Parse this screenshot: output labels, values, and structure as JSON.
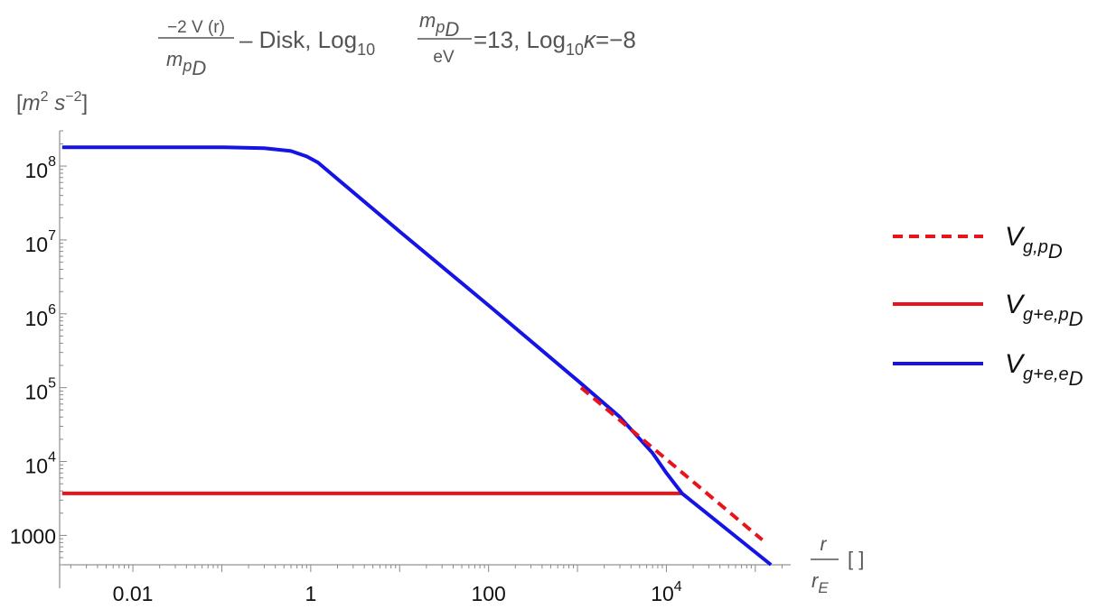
{
  "chart_data": {
    "type": "line",
    "title": {
      "frac_num": "−2 V (r)",
      "frac_den_main": "m",
      "frac_den_sub": "p",
      "frac_den_subsub": "D",
      "part1": " – Disk, Log",
      "log_sub": "10",
      "mid_frac_num_main": "m",
      "mid_frac_num_sub": "p",
      "mid_frac_num_subsub": "D",
      "mid_frac_den": "eV",
      "part2": "=13, Log",
      "log_sub2": "10",
      "kappa": "κ",
      "part3": "=−8"
    },
    "ylabel": {
      "open": "[",
      "m": "m",
      "m_exp": "2",
      "s": " s",
      "s_exp": "−2",
      "close": "]"
    },
    "xlabel": {
      "num": "r",
      "den_main": "r",
      "den_sub": "E",
      "unit": "[ ]"
    },
    "x_scale": "log",
    "y_scale": "log",
    "xlim": [
      0.0015,
      250000
    ],
    "ylim": [
      400,
      300000000
    ],
    "x_ticks": [
      {
        "value": 0.01,
        "label": "0.01"
      },
      {
        "value": 1,
        "label": "1"
      },
      {
        "value": 100,
        "label": "100"
      },
      {
        "value": 10000,
        "label": "10",
        "exp": "4"
      }
    ],
    "y_ticks": [
      {
        "value": 1000,
        "label": "1000"
      },
      {
        "value": 10000,
        "label": "10",
        "exp": "4"
      },
      {
        "value": 100000,
        "label": "10",
        "exp": "5"
      },
      {
        "value": 1000000,
        "label": "10",
        "exp": "6"
      },
      {
        "value": 10000000,
        "label": "10",
        "exp": "7"
      },
      {
        "value": 100000000,
        "label": "10",
        "exp": "8"
      }
    ],
    "series": [
      {
        "name_main": "V",
        "name_sub": "g,p",
        "name_subsub": "D",
        "color": "#e8131b",
        "dash": true,
        "points": [
          [
            1100,
            100000
          ],
          [
            120000,
            870
          ]
        ]
      },
      {
        "name_main": "V",
        "name_sub": "g+e,p",
        "name_subsub": "D",
        "color": "#e8131b",
        "dash": false,
        "points": [
          [
            0.0016,
            3700
          ],
          [
            15000,
            3700
          ]
        ]
      },
      {
        "name_main": "V",
        "name_sub": "g+e,e",
        "name_subsub": "D",
        "color": "#1414e6",
        "dash": false,
        "points": [
          [
            0.0016,
            180000000
          ],
          [
            0.1,
            180000000
          ],
          [
            0.3,
            175000000
          ],
          [
            0.6,
            160000000
          ],
          [
            0.9,
            135000000
          ],
          [
            1.2,
            112000000
          ],
          [
            10,
            13000000
          ],
          [
            100,
            1300000
          ],
          [
            1000,
            125000
          ],
          [
            3000,
            40000
          ],
          [
            7000,
            13000
          ],
          [
            10000,
            7000
          ],
          [
            15000,
            3700
          ],
          [
            150000,
            400
          ]
        ]
      }
    ],
    "legend_position": "right",
    "grid": false
  }
}
